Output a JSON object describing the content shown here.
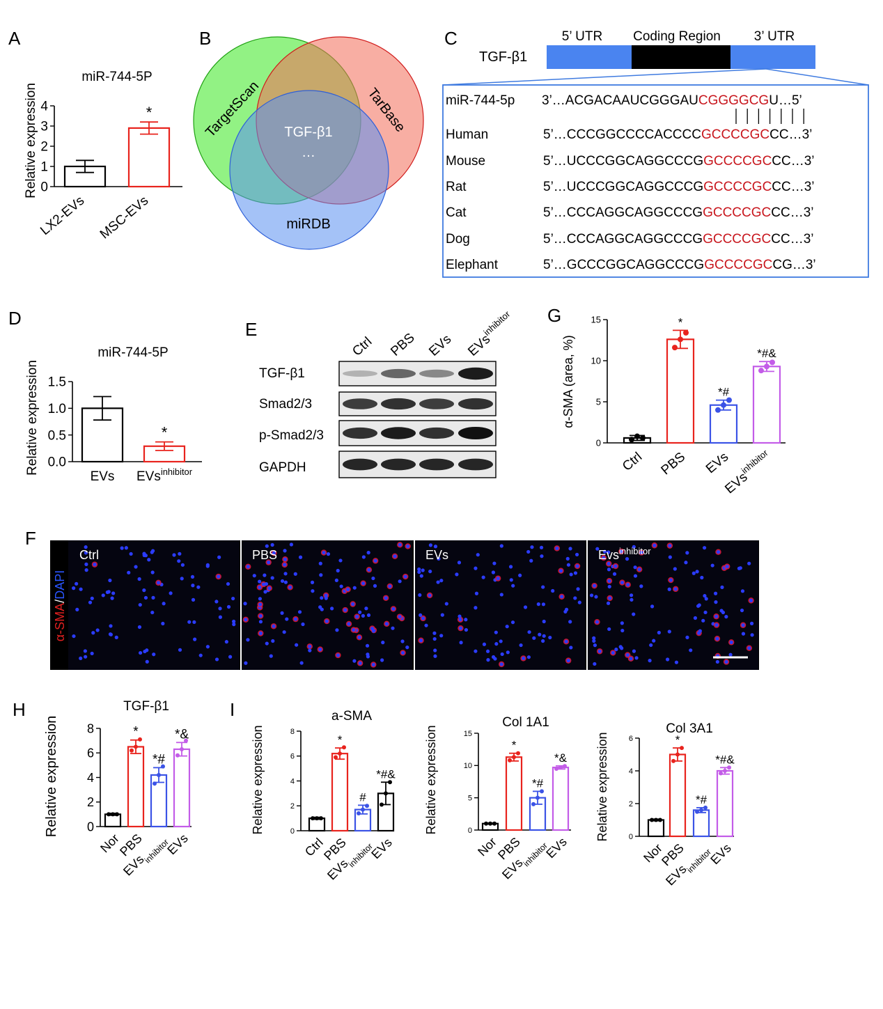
{
  "panels": {
    "A": "A",
    "B": "B",
    "C": "C",
    "D": "D",
    "E": "E",
    "F": "F",
    "G": "G",
    "H": "H",
    "I": "I"
  },
  "colors": {
    "ctrl": "#000000",
    "pbs": "#e8231d",
    "evs": "#3b53e6",
    "inhibitor": "#c35ce8",
    "seed": "#c8161d",
    "utr_blue": "#4a84f0",
    "box_blue": "#3f7be0"
  },
  "panel_a": {
    "chart_data": {
      "type": "bar",
      "title": "miR-744-5P",
      "ylabel": "Relative expression",
      "categories": [
        "LX2-EVs",
        "MSC-EVs"
      ],
      "values": [
        1.0,
        2.9
      ],
      "errors": [
        0.3,
        0.3
      ],
      "ylim": [
        0,
        4
      ],
      "yticks": [
        "0",
        "1",
        "2",
        "3",
        "4"
      ],
      "annotations": [
        "",
        "*"
      ]
    }
  },
  "panel_b": {
    "circles": [
      "TargetScan",
      "TarBase",
      "miRDB"
    ],
    "center_label": "TGF-β1",
    "center_ellipsis": "…"
  },
  "panel_c": {
    "gene": "TGF-β1",
    "regions": [
      "5’ UTR",
      "Coding Region",
      "3’ UTR"
    ],
    "mirna_label": "miR-744-5p",
    "mirna_seq": {
      "pre": "3’…ACGACAAUCGGGAU",
      "seed": "CGGGGCG",
      "post": "U…5’"
    },
    "pairing": "| | | | | | |",
    "species": [
      {
        "name": "Human",
        "pre": "5’…CCCGGCCCCACCCC",
        "seed": "GCCCCGC",
        "post": "CC…3’"
      },
      {
        "name": "Mouse",
        "pre": "5’…UCCCGGCAGGCCCG",
        "seed": "GCCCCGC",
        "post": "CC…3’"
      },
      {
        "name": "Rat",
        "pre": "5’…UCCCGGCAGGCCCG",
        "seed": "GCCCCGC",
        "post": "CC…3’"
      },
      {
        "name": "Cat",
        "pre": "5’…CCCAGGCAGGCCCG",
        "seed": "GCCCCGC",
        "post": "CC…3’"
      },
      {
        "name": "Dog",
        "pre": "5’…CCCAGGCAGGCCCG",
        "seed": "GCCCCGC",
        "post": "CC…3’"
      },
      {
        "name": "Elephant",
        "pre": "5’…GCCCGGCAGGCCCG",
        "seed": "GCCCCGC",
        "post": "CG…3’"
      }
    ]
  },
  "panel_d": {
    "chart_data": {
      "type": "bar",
      "title": "miR-744-5P",
      "ylabel": "Relative expression",
      "categories": [
        "EVs",
        "EVs"
      ],
      "category_sup": [
        "",
        "inhibitor"
      ],
      "values": [
        1.0,
        0.29
      ],
      "errors": [
        0.22,
        0.08
      ],
      "ylim": [
        0,
        1.5
      ],
      "yticks": [
        "0.0",
        "0.5",
        "1.0",
        "1.5"
      ],
      "annotations": [
        "",
        "*"
      ]
    }
  },
  "panel_e": {
    "lanes": [
      "Ctrl",
      "PBS",
      "EVs",
      "EVs"
    ],
    "lane_sup": [
      "",
      "",
      "",
      "inhibitor"
    ],
    "blots": [
      {
        "label": "TGF-β1",
        "intensity": [
          0.25,
          0.6,
          0.45,
          0.95
        ]
      },
      {
        "label": "Smad2/3",
        "intensity": [
          0.8,
          0.85,
          0.8,
          0.85
        ]
      },
      {
        "label": "p-Smad2/3",
        "intensity": [
          0.85,
          0.95,
          0.85,
          1.0
        ]
      },
      {
        "label": "GAPDH",
        "intensity": [
          0.9,
          0.9,
          0.9,
          0.9
        ]
      }
    ]
  },
  "panel_f": {
    "ylabel_red": "α-SMA",
    "ylabel_slash": "/",
    "ylabel_blue": "DAPI",
    "images": [
      {
        "label": "Ctrl",
        "sup": "",
        "red_level": 0.05
      },
      {
        "label": "PBS",
        "sup": "",
        "red_level": 0.7
      },
      {
        "label": "EVs",
        "sup": "",
        "red_level": 0.3
      },
      {
        "label": "Evs",
        "sup": "inhibitor",
        "red_level": 0.5
      }
    ]
  },
  "panel_g": {
    "chart_data": {
      "type": "bar",
      "title": "",
      "ylabel": "α-SMA (area, %)",
      "categories": [
        "Ctrl",
        "PBS",
        "EVs",
        "EVs"
      ],
      "category_sup": [
        "",
        "",
        "",
        "inhibitor"
      ],
      "values": [
        0.6,
        12.6,
        4.6,
        9.3
      ],
      "errors": [
        0.3,
        1.1,
        0.6,
        0.6
      ],
      "points": [
        [
          0.4,
          0.8,
          0.6
        ],
        [
          11.6,
          12.6,
          13.4
        ],
        [
          4.0,
          4.6,
          5.2
        ],
        [
          8.8,
          9.3,
          9.8
        ]
      ],
      "ylim": [
        0,
        15
      ],
      "yticks": [
        "0",
        "5",
        "10",
        "15"
      ],
      "annotations": [
        "",
        "*",
        "*#",
        "*#&"
      ]
    }
  },
  "panel_h": {
    "chart_data": {
      "type": "bar",
      "title": "TGF-β1",
      "ylabel": "Relative expression",
      "categories": [
        "Nor",
        "PBS",
        "EVs",
        "EVs"
      ],
      "category_sup": [
        "",
        "",
        "",
        ""
      ],
      "category_sub": [
        "",
        "",
        "inhibitor",
        ""
      ],
      "values": [
        1.0,
        6.5,
        4.2,
        6.3
      ],
      "errors": [
        0.08,
        0.55,
        0.6,
        0.55
      ],
      "points": [
        [
          1.0,
          1.0,
          1.0
        ],
        [
          6.2,
          6.5,
          7.1
        ],
        [
          3.5,
          4.2,
          4.9
        ],
        [
          5.8,
          6.3,
          7.0
        ]
      ],
      "ylim": [
        0,
        8
      ],
      "yticks": [
        "0",
        "2",
        "4",
        "6",
        "8"
      ],
      "annotations": [
        "",
        "*",
        "*#",
        "*&"
      ]
    }
  },
  "panel_i": [
    {
      "chart_data": {
        "type": "bar",
        "title": "a-SMA",
        "ylabel": "Relative expression",
        "categories": [
          "Ctrl",
          "PBS",
          "EVs",
          "EVs"
        ],
        "category_sub": [
          "",
          "",
          "inhibitor",
          ""
        ],
        "values": [
          1.0,
          6.2,
          1.7,
          3.0
        ],
        "errors": [
          0.08,
          0.45,
          0.35,
          0.9
        ],
        "points": [
          [
            1.0,
            1.0,
            1.0
          ],
          [
            5.9,
            6.2,
            6.7
          ],
          [
            1.4,
            1.7,
            2.0
          ],
          [
            2.1,
            3.0,
            3.9
          ]
        ],
        "ylim": [
          0,
          8
        ],
        "yticks": [
          "0",
          "2",
          "4",
          "6",
          "8"
        ],
        "annotations": [
          "",
          "*",
          "#",
          "*#&"
        ]
      }
    },
    {
      "chart_data": {
        "type": "bar",
        "title": "Col 1A1",
        "ylabel": "Relative expression",
        "categories": [
          "Nor",
          "PBS",
          "EVs",
          "EVs"
        ],
        "category_sub": [
          "",
          "",
          "inhibitor",
          ""
        ],
        "values": [
          1.0,
          11.3,
          5.0,
          9.7
        ],
        "errors": [
          0.08,
          0.6,
          1.0,
          0.25
        ],
        "points": [
          [
            1.0,
            1.0,
            1.0
          ],
          [
            10.8,
            11.3,
            11.9
          ],
          [
            4.0,
            5.0,
            6.0
          ],
          [
            9.5,
            9.7,
            9.9
          ]
        ],
        "ylim": [
          0,
          15
        ],
        "yticks": [
          "0",
          "5",
          "10",
          "15"
        ],
        "annotations": [
          "",
          "*",
          "*#",
          "*&"
        ]
      }
    },
    {
      "chart_data": {
        "type": "bar",
        "title": "Col 3A1",
        "ylabel": "Relative expression",
        "categories": [
          "Nor",
          "PBS",
          "EVs",
          "EVs"
        ],
        "category_sub": [
          "",
          "",
          "inhibitor",
          ""
        ],
        "values": [
          1.0,
          5.0,
          1.6,
          4.0
        ],
        "errors": [
          0.05,
          0.4,
          0.15,
          0.2
        ],
        "points": [
          [
            1.0,
            1.0,
            1.0
          ],
          [
            4.6,
            5.0,
            5.4
          ],
          [
            1.5,
            1.6,
            1.75
          ],
          [
            3.85,
            4.0,
            4.2
          ]
        ],
        "ylim": [
          0,
          6
        ],
        "yticks": [
          "0",
          "2",
          "4",
          "6"
        ],
        "annotations": [
          "",
          "*",
          "*#",
          "*#&"
        ]
      }
    }
  ]
}
